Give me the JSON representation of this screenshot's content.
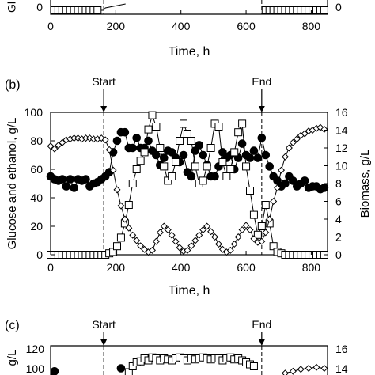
{
  "chart_data": [
    {
      "panel": "a",
      "type": "line",
      "cropped": true,
      "xlabel": "Time, h",
      "xlim": [
        0,
        850
      ],
      "x_ticks": [
        0,
        200,
        400,
        600,
        800
      ],
      "visible_left_axis_label": "Gl",
      "left_ticks_visible": [
        "0"
      ],
      "right_ticks_visible": [
        "0"
      ],
      "start_h": 163,
      "end_h": 648
    },
    {
      "panel": "b",
      "type": "scatter",
      "panel_label": "(b)",
      "ylabel_left": "Glucose and ethanol, g/L",
      "ylabel_right": "Biomass, g/L",
      "xlabel": "Time, h",
      "xlim": [
        0,
        850
      ],
      "ylim_left": [
        0,
        100
      ],
      "ylim_right": [
        0,
        16
      ],
      "x_ticks": [
        0,
        200,
        400,
        600,
        800
      ],
      "y_ticks_left": [
        0,
        20,
        40,
        60,
        80,
        100
      ],
      "y_ticks_right": [
        0,
        2,
        4,
        6,
        8,
        10,
        12,
        14,
        16
      ],
      "annotations": [
        {
          "text": "Start",
          "x": 163
        },
        {
          "text": "End",
          "x": 648
        }
      ],
      "series": [
        {
          "marker": "filled-circle",
          "axis": "left",
          "x": [
            0,
            12,
            24,
            36,
            48,
            60,
            72,
            84,
            96,
            108,
            120,
            132,
            144,
            156,
            168,
            180,
            192,
            204,
            216,
            228,
            240,
            252,
            264,
            276,
            288,
            300,
            312,
            324,
            336,
            348,
            360,
            372,
            384,
            396,
            408,
            420,
            432,
            444,
            456,
            468,
            480,
            492,
            504,
            516,
            528,
            540,
            552,
            564,
            576,
            588,
            600,
            612,
            624,
            636,
            648,
            660,
            672,
            684,
            696,
            708,
            720,
            732,
            744,
            756,
            768,
            780,
            792,
            804,
            816,
            828,
            840
          ],
          "y": [
            55,
            53,
            52,
            53,
            48,
            53,
            47,
            53,
            52,
            53,
            48,
            50,
            51,
            53,
            55,
            58,
            72,
            80,
            86,
            86,
            75,
            75,
            82,
            75,
            75,
            80,
            73,
            70,
            63,
            68,
            73,
            72,
            68,
            65,
            70,
            58,
            55,
            73,
            77,
            70,
            63,
            55,
            55,
            62,
            72,
            68,
            70,
            60,
            68,
            78,
            70,
            68,
            73,
            68,
            82,
            70,
            62,
            55,
            52,
            48,
            50,
            55,
            52,
            48,
            50,
            52,
            47,
            48,
            48,
            46,
            47
          ]
        },
        {
          "marker": "open-square",
          "axis": "left",
          "x": [
            0,
            12,
            24,
            36,
            48,
            60,
            72,
            84,
            96,
            108,
            120,
            132,
            144,
            156,
            168,
            180,
            192,
            204,
            216,
            228,
            240,
            252,
            264,
            276,
            288,
            300,
            312,
            324,
            336,
            348,
            360,
            372,
            384,
            396,
            408,
            420,
            432,
            444,
            456,
            468,
            480,
            492,
            504,
            516,
            528,
            540,
            552,
            564,
            576,
            588,
            600,
            612,
            624,
            636,
            648,
            660,
            672,
            684,
            696,
            708,
            720,
            732,
            744,
            756,
            768,
            780,
            792,
            804,
            816,
            828,
            840
          ],
          "y": [
            0,
            0,
            0,
            0,
            0,
            0,
            0,
            0,
            0,
            0,
            0,
            0,
            0,
            0,
            0,
            1,
            2,
            6,
            12,
            22,
            35,
            50,
            60,
            66,
            72,
            88,
            98,
            90,
            75,
            62,
            52,
            55,
            65,
            80,
            92,
            85,
            80,
            62,
            50,
            52,
            62,
            75,
            92,
            90,
            65,
            55,
            60,
            72,
            86,
            92,
            62,
            45,
            28,
            14,
            20,
            35,
            22,
            6,
            2,
            1,
            0,
            0,
            0,
            0,
            0,
            0,
            0,
            0,
            0,
            0,
            0
          ]
        },
        {
          "marker": "open-diamond",
          "axis": "right",
          "x": [
            0,
            12,
            24,
            36,
            48,
            60,
            72,
            84,
            96,
            108,
            120,
            132,
            144,
            156,
            168,
            180,
            192,
            204,
            216,
            228,
            240,
            252,
            264,
            276,
            288,
            300,
            312,
            324,
            336,
            348,
            360,
            372,
            384,
            396,
            408,
            420,
            432,
            444,
            456,
            468,
            480,
            492,
            504,
            516,
            528,
            540,
            552,
            564,
            576,
            588,
            600,
            612,
            624,
            636,
            648,
            660,
            672,
            684,
            696,
            708,
            720,
            732,
            744,
            756,
            768,
            780,
            792,
            804,
            816,
            828,
            840
          ],
          "y": [
            12.2,
            11.9,
            12.3,
            12.6,
            12.9,
            13.0,
            13.1,
            13.1,
            13.0,
            13.1,
            13.1,
            13.0,
            13.0,
            13.1,
            12.9,
            11.8,
            9.5,
            7.3,
            5.5,
            4.0,
            3.0,
            2.2,
            1.6,
            1.0,
            0.6,
            0.3,
            0.5,
            1.5,
            2.5,
            3.2,
            2.8,
            2.2,
            1.5,
            0.8,
            0.4,
            0.5,
            1.0,
            1.6,
            2.2,
            2.8,
            3.2,
            2.6,
            2.0,
            1.2,
            0.6,
            0.3,
            0.5,
            1.2,
            2.0,
            2.8,
            3.3,
            2.8,
            1.8,
            1.4,
            1.5,
            2.5,
            4.0,
            6.0,
            7.5,
            9.5,
            11.0,
            12.0,
            12.6,
            13.0,
            13.4,
            13.6,
            13.9,
            14.0,
            14.2,
            14.3,
            14.1
          ]
        }
      ]
    },
    {
      "panel": "c",
      "type": "scatter",
      "cropped": true,
      "panel_label": "(c)",
      "left_ticks_visible": [
        "120",
        "100"
      ],
      "right_ticks_visible": [
        "16",
        "14"
      ],
      "visible_left_axis_label": "g/L",
      "annotations": [
        {
          "text": "Start",
          "x": 163
        },
        {
          "text": "End",
          "x": 648
        }
      ],
      "series": [
        {
          "marker": "open-square",
          "x": [
            240,
            252,
            264,
            276,
            288,
            300,
            312,
            324,
            336,
            348,
            360,
            372,
            384,
            396,
            408,
            420,
            432,
            444,
            456,
            468,
            480,
            492,
            504,
            516,
            528,
            540,
            552,
            564,
            576,
            588,
            600,
            612,
            624
          ],
          "y": [
            98,
            104,
            108,
            109,
            112,
            110,
            113,
            112,
            110,
            112,
            111,
            110,
            112,
            113,
            112,
            110,
            112,
            111,
            112,
            113,
            112,
            111,
            112,
            112,
            110,
            112,
            113,
            111,
            112,
            110,
            108,
            106,
            104
          ]
        },
        {
          "marker": "filled-circle",
          "x": [
            0,
            12,
            216
          ],
          "y": [
            97,
            99,
            102
          ]
        },
        {
          "marker": "open-diamond",
          "x": [
            720,
            744,
            768,
            792,
            816,
            840
          ],
          "y": [
            13.7,
            13.9,
            14.1,
            14.2,
            14.3,
            14.2
          ]
        }
      ]
    }
  ]
}
